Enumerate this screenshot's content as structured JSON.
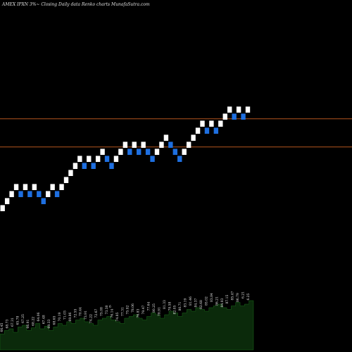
{
  "chart_data": {
    "type": "renko",
    "title": "AMEX  IPXN  3%~   Closing Daily data  Renko  charts MunafaSutra.com",
    "colors": {
      "background": "#000000",
      "up_brick": "#ffffff",
      "down_brick": "#1e6fe0",
      "level_line": "#b4551e",
      "volume_area": "#0b2a0b",
      "volume_edge": "#1b6a1b"
    },
    "levels": [
      86.5,
      83.3
    ],
    "ylim": [
      60,
      100
    ],
    "bricks": [
      {
        "dir": "up",
        "value": 76.0
      },
      {
        "dir": "up",
        "value": 76.8
      },
      {
        "dir": "up",
        "value": 77.6
      },
      {
        "dir": "up",
        "value": 78.4
      },
      {
        "dir": "down",
        "value": 77.6
      },
      {
        "dir": "up",
        "value": 78.4
      },
      {
        "dir": "down",
        "value": 77.6
      },
      {
        "dir": "up",
        "value": 78.4
      },
      {
        "dir": "down",
        "value": 77.6
      },
      {
        "dir": "down",
        "value": 76.8
      },
      {
        "dir": "up",
        "value": 77.6
      },
      {
        "dir": "up",
        "value": 78.4
      },
      {
        "dir": "down",
        "value": 77.6
      },
      {
        "dir": "up",
        "value": 78.4
      },
      {
        "dir": "up",
        "value": 79.2
      },
      {
        "dir": "up",
        "value": 80.0
      },
      {
        "dir": "up",
        "value": 80.8
      },
      {
        "dir": "up",
        "value": 81.6
      },
      {
        "dir": "down",
        "value": 80.8
      },
      {
        "dir": "up",
        "value": 81.6
      },
      {
        "dir": "down",
        "value": 80.8
      },
      {
        "dir": "up",
        "value": 81.6
      },
      {
        "dir": "up",
        "value": 82.4
      },
      {
        "dir": "down",
        "value": 81.6
      },
      {
        "dir": "down",
        "value": 80.8
      },
      {
        "dir": "up",
        "value": 81.6
      },
      {
        "dir": "up",
        "value": 82.4
      },
      {
        "dir": "up",
        "value": 83.2
      },
      {
        "dir": "down",
        "value": 82.4
      },
      {
        "dir": "up",
        "value": 83.2
      },
      {
        "dir": "down",
        "value": 82.4
      },
      {
        "dir": "up",
        "value": 83.2
      },
      {
        "dir": "down",
        "value": 82.4
      },
      {
        "dir": "down",
        "value": 81.6
      },
      {
        "dir": "up",
        "value": 82.4
      },
      {
        "dir": "up",
        "value": 83.2
      },
      {
        "dir": "up",
        "value": 84.0
      },
      {
        "dir": "down",
        "value": 83.2
      },
      {
        "dir": "down",
        "value": 82.4
      },
      {
        "dir": "down",
        "value": 81.6
      },
      {
        "dir": "up",
        "value": 82.4
      },
      {
        "dir": "up",
        "value": 83.2
      },
      {
        "dir": "up",
        "value": 84.0
      },
      {
        "dir": "up",
        "value": 84.8
      },
      {
        "dir": "up",
        "value": 85.6
      },
      {
        "dir": "down",
        "value": 84.8
      },
      {
        "dir": "up",
        "value": 85.6
      },
      {
        "dir": "down",
        "value": 84.8
      },
      {
        "dir": "up",
        "value": 85.6
      },
      {
        "dir": "up",
        "value": 86.4
      },
      {
        "dir": "up",
        "value": 87.2
      },
      {
        "dir": "down",
        "value": 86.4
      },
      {
        "dir": "up",
        "value": 87.2
      },
      {
        "dir": "down",
        "value": 86.4
      },
      {
        "dir": "up",
        "value": 87.2
      }
    ],
    "volume_levels": [
      18,
      22,
      24,
      20,
      26,
      28,
      22,
      25,
      30,
      24,
      27,
      22,
      26,
      30,
      28,
      32,
      30,
      34,
      36,
      32,
      30,
      28,
      34,
      36,
      38,
      34,
      32,
      30,
      36,
      38,
      40,
      36,
      34,
      38,
      42,
      40,
      36,
      40,
      44,
      42,
      38,
      42,
      46,
      44,
      48,
      46,
      44,
      48,
      50,
      52,
      48,
      46,
      50,
      54,
      50,
      52,
      56,
      54
    ],
    "volume_labels": [
      "66.45",
      "68.73",
      "67.31",
      "65.78",
      "67.25",
      "66.91",
      "68.22",
      "64.06",
      "67.48",
      "69.33",
      "68.65",
      "70.19",
      "71.03",
      "69.86",
      "72.55",
      "70.44",
      "73.91",
      "74.22",
      "72.67",
      "75.08",
      "73.38",
      "76.14",
      "74.85",
      "77.31",
      "75.92",
      "78.06",
      "76.83",
      "79.47",
      "77.64",
      "80.25",
      "78.91",
      "81.33",
      "79.58",
      "82.05",
      "80.71",
      "83.19",
      "81.46",
      "84.37",
      "82.68",
      "85.02",
      "83.84",
      "86.21",
      "84.93",
      "87.15",
      "85.47",
      "86.79",
      "6.21",
      "6.25"
    ],
    "volume_marker": "6"
  }
}
